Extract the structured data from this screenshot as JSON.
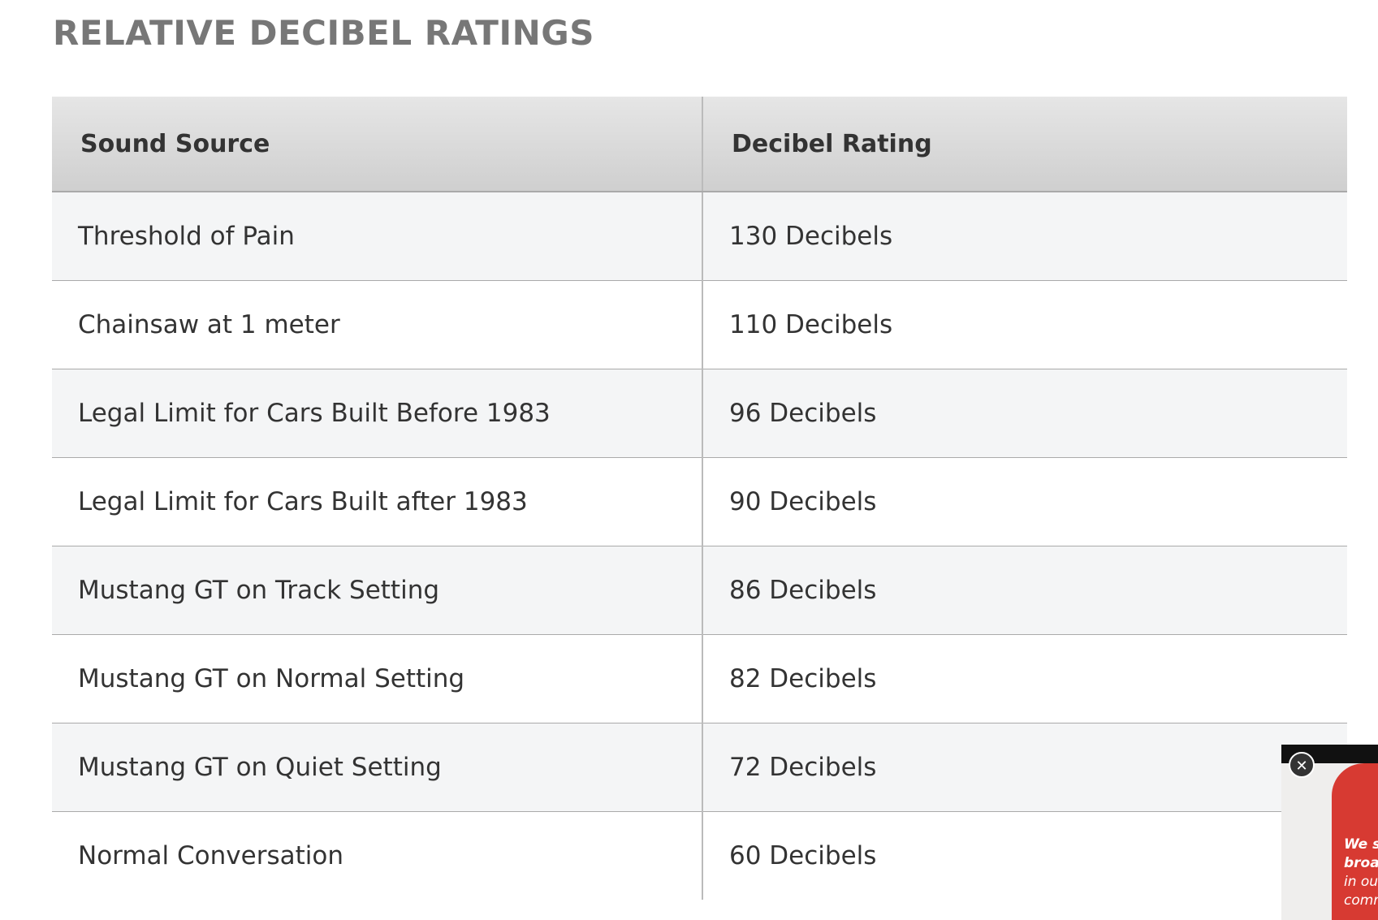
{
  "header": {
    "title": "RELATIVE DECIBEL RATINGS"
  },
  "table": {
    "columns": [
      "Sound Source",
      "Decibel Rating"
    ],
    "rows": [
      [
        "Threshold of Pain",
        "130 Decibels"
      ],
      [
        "Chainsaw at 1 meter",
        "110 Decibels"
      ],
      [
        "Legal Limit for Cars Built Before 1983",
        "96 Decibels"
      ],
      [
        "Legal Limit for Cars Built after 1983",
        "90 Decibels"
      ],
      [
        "Mustang GT on Track Setting",
        "86 Decibels"
      ],
      [
        "Mustang GT on Normal Setting",
        "82 Decibels"
      ],
      [
        "Mustang GT on Quiet Setting",
        "72 Decibels"
      ],
      [
        "Normal Conversation",
        "60 Decibels"
      ]
    ]
  },
  "ad": {
    "lines": [
      "We s",
      "broad",
      "in our",
      "comm"
    ]
  }
}
